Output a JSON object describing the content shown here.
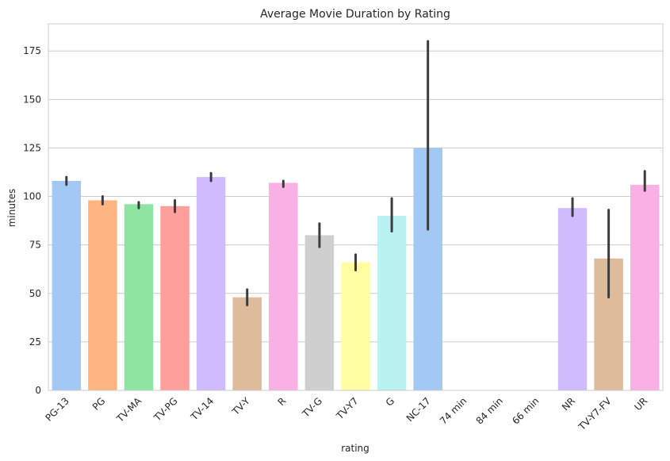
{
  "chart_data": {
    "type": "bar",
    "title": "Average Movie Duration by Rating",
    "xlabel": "rating",
    "ylabel": "minutes",
    "ylim": [
      0,
      189
    ],
    "yticks": [
      0,
      25,
      50,
      75,
      100,
      125,
      150,
      175
    ],
    "grid": "horizontal",
    "categories": [
      "PG-13",
      "PG",
      "TV-MA",
      "TV-PG",
      "TV-14",
      "TV-Y",
      "R",
      "TV-G",
      "TV-Y7",
      "G",
      "NC-17",
      "74 min",
      "84 min",
      "66 min",
      "NR",
      "TV-Y7-FV",
      "UR"
    ],
    "values": [
      108,
      98,
      96,
      95,
      110,
      48,
      107,
      80,
      66,
      90,
      125,
      null,
      null,
      null,
      94,
      68,
      106
    ],
    "error_low": [
      106,
      96,
      94,
      92,
      108,
      44,
      105,
      74,
      62,
      82,
      83,
      null,
      null,
      null,
      90,
      48,
      103
    ],
    "error_high": [
      110,
      100,
      97,
      98,
      112,
      52,
      108,
      86,
      70,
      99,
      180,
      null,
      null,
      null,
      99,
      93,
      113
    ],
    "colors": [
      "#a1c9f4",
      "#ffb482",
      "#8de5a1",
      "#ff9f9b",
      "#d0bbff",
      "#debb9b",
      "#fab0e4",
      "#cfcfcf",
      "#fffea3",
      "#b9f2f0",
      "#a1c9f4",
      "#ffb482",
      "#8de5a1",
      "#ff9f9b",
      "#d0bbff",
      "#debb9b",
      "#fab0e4"
    ],
    "error_color": "#3c3c3c"
  }
}
